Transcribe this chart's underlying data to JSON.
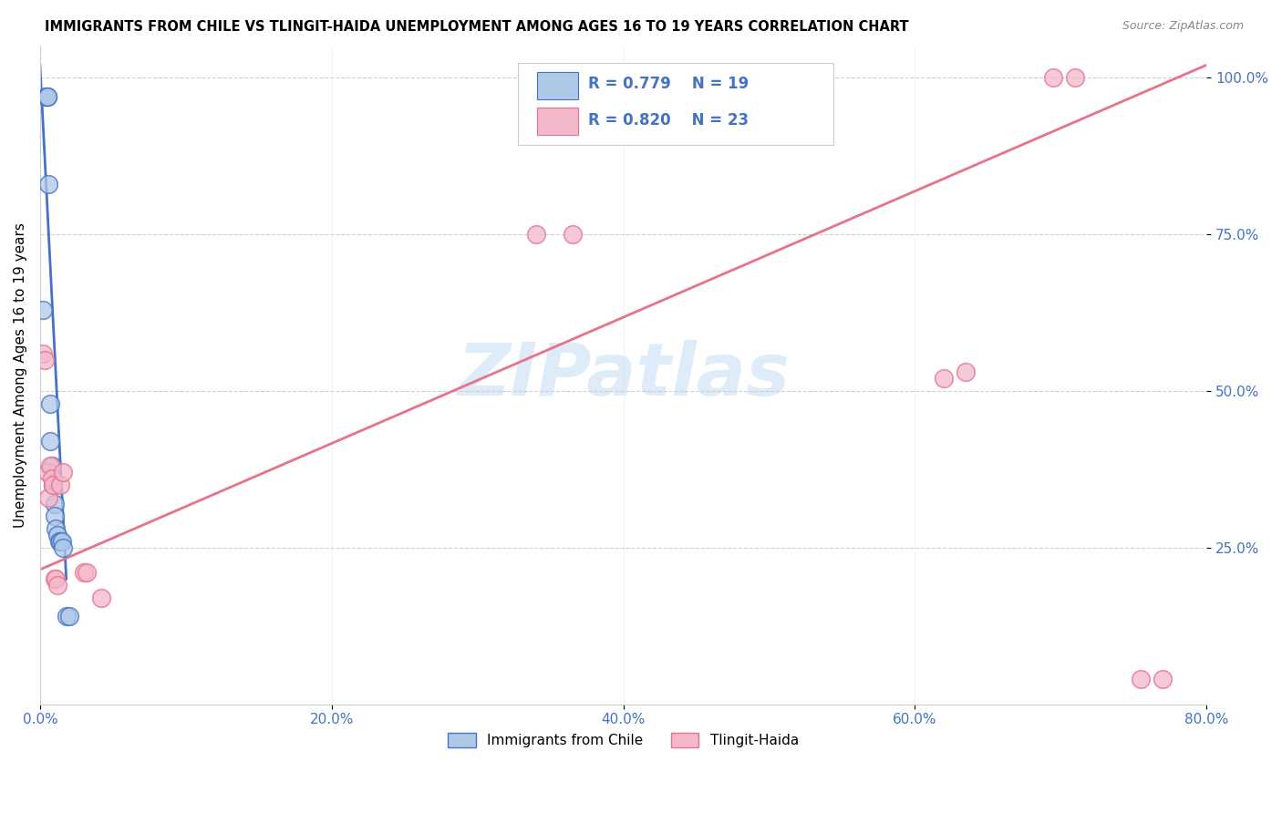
{
  "title": "IMMIGRANTS FROM CHILE VS TLINGIT-HAIDA UNEMPLOYMENT AMONG AGES 16 TO 19 YEARS CORRELATION CHART",
  "source": "Source: ZipAtlas.com",
  "ylabel": "Unemployment Among Ages 16 to 19 years",
  "legend_label1": "Immigrants from Chile",
  "legend_label2": "Tlingit-Haida",
  "r1": "0.779",
  "n1": "19",
  "r2": "0.820",
  "n2": "23",
  "color_blue": "#aec8e8",
  "color_pink": "#f4b8cb",
  "color_blue_line": "#4472c4",
  "color_pink_line": "#e8728a",
  "watermark": "ZIPatlas",
  "xlim": [
    0.0,
    0.8
  ],
  "ylim": [
    0.0,
    1.05
  ],
  "xticks": [
    0.0,
    0.2,
    0.4,
    0.6,
    0.8
  ],
  "yticks": [
    0.25,
    0.5,
    0.75,
    1.0
  ],
  "xticklabels": [
    "0.0%",
    "20.0%",
    "40.0%",
    "60.0%",
    "80.0%"
  ],
  "yticklabels": [
    "25.0%",
    "50.0%",
    "75.0%",
    "100.0%"
  ],
  "blue_scatter_x": [
    0.002,
    0.004,
    0.005,
    0.005,
    0.006,
    0.007,
    0.007,
    0.008,
    0.009,
    0.01,
    0.01,
    0.011,
    0.012,
    0.013,
    0.014,
    0.015,
    0.016,
    0.018,
    0.02
  ],
  "blue_scatter_y": [
    0.63,
    0.97,
    0.97,
    0.97,
    0.83,
    0.48,
    0.42,
    0.38,
    0.35,
    0.32,
    0.3,
    0.28,
    0.27,
    0.26,
    0.26,
    0.26,
    0.25,
    0.14,
    0.14
  ],
  "pink_scatter_x": [
    0.002,
    0.003,
    0.005,
    0.006,
    0.007,
    0.008,
    0.009,
    0.01,
    0.011,
    0.012,
    0.014,
    0.016,
    0.03,
    0.032,
    0.042,
    0.34,
    0.365,
    0.62,
    0.635,
    0.695,
    0.71,
    0.755,
    0.77
  ],
  "pink_scatter_y": [
    0.56,
    0.55,
    0.37,
    0.33,
    0.38,
    0.36,
    0.35,
    0.2,
    0.2,
    0.19,
    0.35,
    0.37,
    0.21,
    0.21,
    0.17,
    0.75,
    0.75,
    0.52,
    0.53,
    1.0,
    1.0,
    0.04,
    0.04
  ],
  "blue_line_x0": 0.0,
  "blue_line_y0": 1.02,
  "blue_line_x1": 0.018,
  "blue_line_y1": 0.2,
  "pink_line_x0": 0.0,
  "pink_line_y0": 0.215,
  "pink_line_x1": 0.8,
  "pink_line_y1": 1.02
}
